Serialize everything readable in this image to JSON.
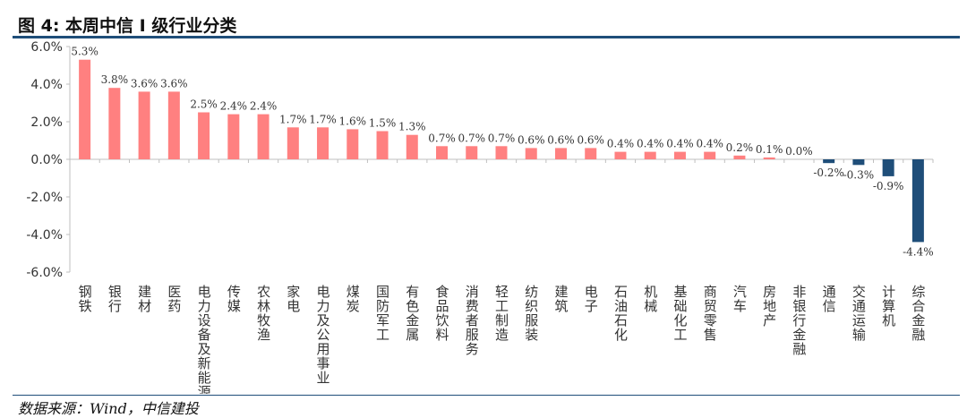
{
  "figure": {
    "title": "图 4: 本周中信 I 级行业分类",
    "source": "数据来源：Wind，中信建投"
  },
  "colors": {
    "positive": "#ff8080",
    "negative": "#1f4e79",
    "axis": "#bfbfbf",
    "text": "#333333"
  },
  "chart_data": {
    "type": "bar",
    "title": "",
    "xlabel": "",
    "ylabel": "",
    "ylim": [
      -6.0,
      6.0
    ],
    "yticks": [
      "-6.0%",
      "-4.0%",
      "-2.0%",
      "0.0%",
      "2.0%",
      "4.0%",
      "6.0%"
    ],
    "grid": false,
    "legend": "none",
    "categories": [
      "钢铁",
      "银行",
      "建材",
      "医药",
      "电力设备及新能源",
      "传媒",
      "农林牧渔",
      "家电",
      "电力及公用事业",
      "煤炭",
      "国防军工",
      "有色金属",
      "食品饮料",
      "消费者服务",
      "轻工制造",
      "纺织服装",
      "建筑",
      "电子",
      "石油石化",
      "机械",
      "基础化工",
      "商贸零售",
      "汽车",
      "房地产",
      "非银行金融",
      "通信",
      "交通运输",
      "计算机",
      "综合金融"
    ],
    "values": [
      5.3,
      3.8,
      3.6,
      3.6,
      2.5,
      2.4,
      2.4,
      1.7,
      1.7,
      1.6,
      1.5,
      1.3,
      0.7,
      0.7,
      0.7,
      0.6,
      0.6,
      0.6,
      0.4,
      0.4,
      0.4,
      0.4,
      0.2,
      0.1,
      0.0,
      -0.2,
      -0.3,
      -0.9,
      -4.4
    ],
    "data_labels": [
      "5.3%",
      "3.8%",
      "3.6%",
      "3.6%",
      "2.5%",
      "2.4%",
      "2.4%",
      "1.7%",
      "1.7%",
      "1.6%",
      "1.5%",
      "1.3%",
      "0.7%",
      "0.7%",
      "0.7%",
      "0.6%",
      "0.6%",
      "0.6%",
      "0.4%",
      "0.4%",
      "0.4%",
      "0.4%",
      "0.2%",
      "0.1%",
      "0.0%",
      "-0.2%",
      "-0.3%",
      "-0.9%",
      "-4.4%"
    ]
  }
}
